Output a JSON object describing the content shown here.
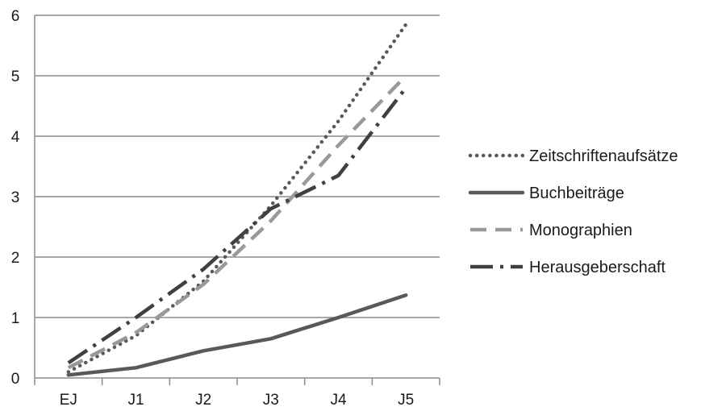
{
  "chart_data": {
    "type": "line",
    "categories": [
      "EJ",
      "J1",
      "J2",
      "J3",
      "J4",
      "J5"
    ],
    "ylim": [
      0,
      6
    ],
    "yticks": [
      "0",
      "1",
      "2",
      "3",
      "4",
      "5",
      "6"
    ],
    "grid": true,
    "legend_position": "right",
    "series": [
      {
        "name": "Zeitschriftenaufsätze",
        "values": [
          0.1,
          0.7,
          1.6,
          2.85,
          4.25,
          5.85
        ],
        "color": "#595959",
        "style": "dotted"
      },
      {
        "name": "Buchbeiträge",
        "values": [
          0.05,
          0.17,
          0.45,
          0.65,
          1.0,
          1.37
        ],
        "color": "#595959",
        "style": "solid"
      },
      {
        "name": "Monographien",
        "values": [
          0.17,
          0.75,
          1.55,
          2.6,
          3.85,
          5.0
        ],
        "color": "#999999",
        "style": "dashed"
      },
      {
        "name": "Herausgeberschaft",
        "values": [
          0.25,
          1.0,
          1.8,
          2.8,
          3.35,
          4.8
        ],
        "color": "#404040",
        "style": "longdash-dot"
      }
    ]
  }
}
